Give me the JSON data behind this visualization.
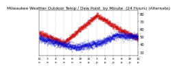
{
  "title": "Milwaukee Weather Outdoor Temp / Dew Point  by Minute  (24 Hours) (Alternate)",
  "title_fontsize": 4.2,
  "bg_color": "#ffffff",
  "plot_bg_color": "#ffffff",
  "grid_color": "#bbbbbb",
  "temp_color": "#cc0000",
  "dew_color": "#0000cc",
  "ylim": [
    25,
    85
  ],
  "yticks": [
    30,
    40,
    50,
    60,
    70,
    80
  ],
  "ytick_fontsize": 3.8,
  "xtick_fontsize": 3.2,
  "num_points": 1440
}
